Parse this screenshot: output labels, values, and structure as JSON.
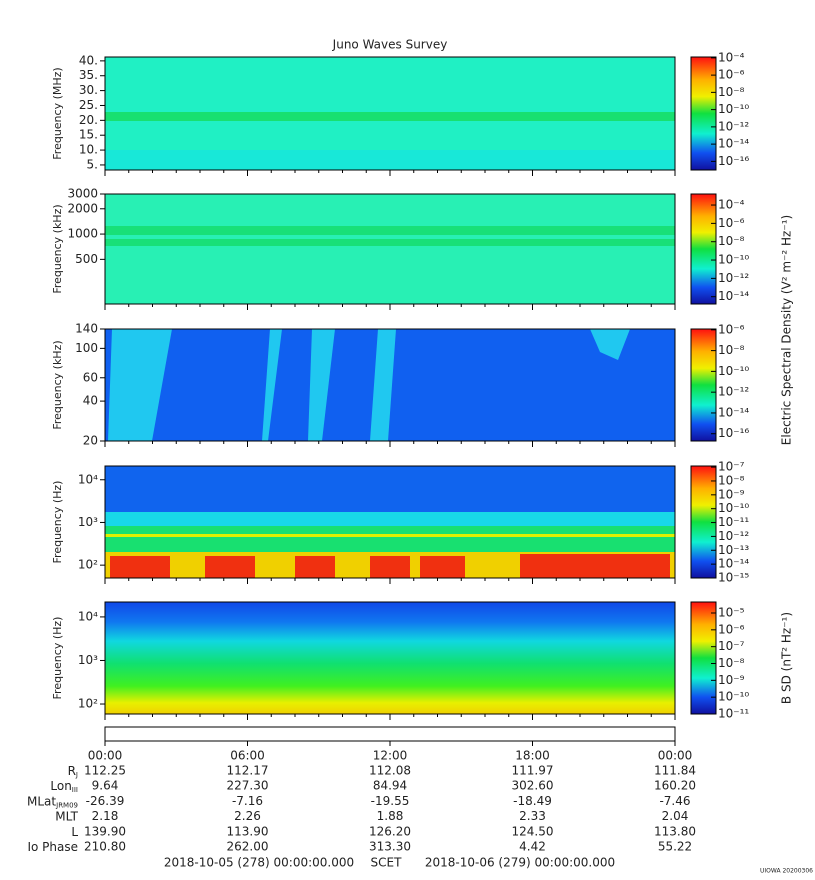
{
  "title": "Juno Waves Survey",
  "chart_data": [
    {
      "type": "spectrogram",
      "ylabel": "Frequency (MHz)",
      "log": false,
      "ylim": [
        3.3,
        41.3
      ],
      "yticks": [
        {
          "value": 5,
          "label": "5."
        },
        {
          "value": 10,
          "label": "10."
        },
        {
          "value": 15,
          "label": "15."
        },
        {
          "value": 20,
          "label": "20."
        },
        {
          "value": 25,
          "label": "25."
        },
        {
          "value": 30,
          "label": "30."
        },
        {
          "value": 35,
          "label": "35."
        },
        {
          "value": 40,
          "label": "40."
        }
      ],
      "clim": [
        1e-17,
        0.000126
      ],
      "cticks": [
        {
          "value": 0.0001,
          "label": "10⁻⁴"
        },
        {
          "value": 1e-06,
          "label": "10⁻⁶"
        },
        {
          "value": 1e-08,
          "label": "10⁻⁸"
        },
        {
          "value": 1e-10,
          "label": "10⁻¹⁰"
        },
        {
          "value": 1e-12,
          "label": "10⁻¹²"
        },
        {
          "value": 1e-14,
          "label": "10⁻¹⁴"
        },
        {
          "value": 1e-16,
          "label": "10⁻¹⁶"
        }
      ]
    },
    {
      "type": "spectrogram",
      "ylabel": "Frequency (kHz)",
      "log": true,
      "ylim": [
        147,
        3000
      ],
      "yticks": [
        500,
        1000,
        2000,
        3000
      ],
      "clim": [
        1.6e-15,
        0.0016
      ],
      "cticks": [
        {
          "value": 0.0001,
          "label": "10⁻⁴"
        },
        {
          "value": 1e-06,
          "label": "10⁻⁶"
        },
        {
          "value": 1e-08,
          "label": "10⁻⁸"
        },
        {
          "value": 1e-10,
          "label": "10⁻¹⁰"
        },
        {
          "value": 1e-12,
          "label": "10⁻¹²"
        },
        {
          "value": 1e-14,
          "label": "10⁻¹⁴"
        }
      ],
      "clabel": "Electric Spectral Density (V² m⁻² Hz⁻¹)"
    },
    {
      "type": "spectrogram",
      "ylabel": "Frequency (kHz)",
      "log": true,
      "ylim": [
        20,
        140
      ],
      "yticks": [
        20,
        40,
        60,
        100,
        140
      ],
      "clim": [
        2e-17,
        1.2e-06
      ],
      "cticks": [
        {
          "value": 1e-06,
          "label": "10⁻⁶"
        },
        {
          "value": 1e-08,
          "label": "10⁻⁸"
        },
        {
          "value": 1e-10,
          "label": "10⁻¹⁰"
        },
        {
          "value": 1e-12,
          "label": "10⁻¹²"
        },
        {
          "value": 1e-14,
          "label": "10⁻¹⁴"
        },
        {
          "value": 1e-16,
          "label": "10⁻¹⁶"
        }
      ]
    },
    {
      "type": "spectrogram",
      "ylabel": "Frequency (Hz)",
      "log": true,
      "ylim": [
        50,
        21000
      ],
      "yticks": [
        {
          "value": 100,
          "label": "10²"
        },
        {
          "value": 1000,
          "label": "10³"
        },
        {
          "value": 10000,
          "label": "10⁴"
        }
      ],
      "clim": [
        1e-15,
        1.2e-07
      ],
      "cticks": [
        {
          "value": 1e-07,
          "label": "10⁻⁷"
        },
        {
          "value": 1e-08,
          "label": "10⁻⁸"
        },
        {
          "value": 1e-09,
          "label": "10⁻⁹"
        },
        {
          "value": 1e-10,
          "label": "10⁻¹⁰"
        },
        {
          "value": 1e-11,
          "label": "10⁻¹¹"
        },
        {
          "value": 1e-12,
          "label": "10⁻¹²"
        },
        {
          "value": 1e-13,
          "label": "10⁻¹³"
        },
        {
          "value": 1e-14,
          "label": "10⁻¹⁴"
        },
        {
          "value": 1e-15,
          "label": "10⁻¹⁵"
        }
      ]
    },
    {
      "type": "spectrogram",
      "ylabel": "Frequency (Hz)",
      "log": true,
      "ylim": [
        59,
        22000
      ],
      "yticks": [
        {
          "value": 100,
          "label": "10²"
        },
        {
          "value": 1000,
          "label": "10³"
        },
        {
          "value": 10000,
          "label": "10⁴"
        }
      ],
      "clim": [
        1e-11,
        4.5e-05
      ],
      "cticks": [
        {
          "value": 1e-05,
          "label": "10⁻⁵"
        },
        {
          "value": 1e-06,
          "label": "10⁻⁶"
        },
        {
          "value": 1e-07,
          "label": "10⁻⁷"
        },
        {
          "value": 1e-08,
          "label": "10⁻⁸"
        },
        {
          "value": 1e-09,
          "label": "10⁻⁹"
        },
        {
          "value": 1e-10,
          "label": "10⁻¹⁰"
        },
        {
          "value": 1e-11,
          "label": "10⁻¹¹"
        }
      ],
      "clabel": "B SD (nT² Hz⁻¹)"
    }
  ],
  "time_axis": {
    "categories": [
      "00:00",
      "06:00",
      "12:00",
      "18:00",
      "00:00"
    ]
  },
  "ephemeris": {
    "rows": [
      {
        "label": "R",
        "sub": "J",
        "values": [
          "112.25",
          "112.17",
          "112.08",
          "111.97",
          "111.84"
        ]
      },
      {
        "label": "Lon",
        "sub": "III",
        "values": [
          "9.64",
          "227.30",
          "84.94",
          "302.60",
          "160.20"
        ]
      },
      {
        "label": "MLat",
        "sub": "JRM09",
        "values": [
          "-26.39",
          "-7.16",
          "-19.55",
          "-18.49",
          "-7.46"
        ]
      },
      {
        "label": "MLT",
        "values": [
          "2.18",
          "2.26",
          "1.88",
          "2.33",
          "2.04"
        ]
      },
      {
        "label": "L",
        "values": [
          "139.90",
          "113.90",
          "126.20",
          "124.50",
          "113.80"
        ]
      },
      {
        "label": "Io Phase",
        "values": [
          "210.80",
          "262.00",
          "313.30",
          "4.42",
          "55.22"
        ]
      }
    ]
  },
  "footer": {
    "start": "2018-10-05 (278) 00:00:00.000",
    "frame": "SCET",
    "end": "2018-10-06 (279) 00:00:00.000",
    "stamp": "UIOWA 20200306"
  }
}
